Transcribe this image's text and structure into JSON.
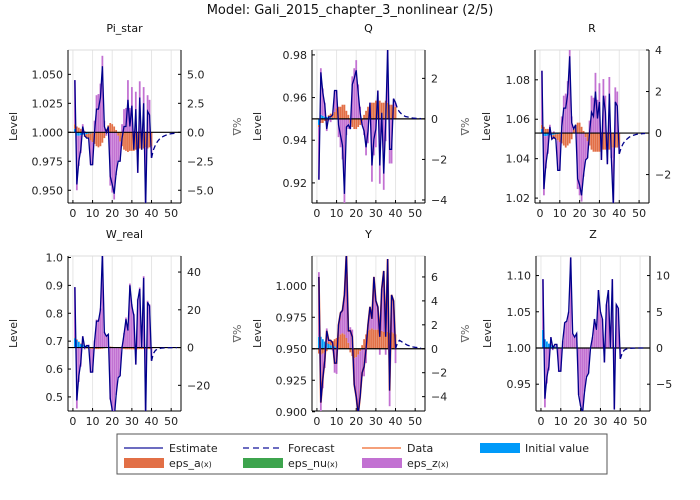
{
  "title": "Model: Gali_2015_chapter_3_nonlinear  (2/5)",
  "colors": {
    "estimate": "#00008b",
    "forecast": "#00008b",
    "data": "#e8501f",
    "initial": "#009af9",
    "eps_a": "#e26f46",
    "eps_nu": "#3da44d",
    "eps_z": "#c271d2"
  },
  "legend": {
    "estimate": "Estimate",
    "forecast": "Forecast",
    "data": "Data",
    "initial": "Initial value",
    "eps_a": "eps_a",
    "eps_nu": "eps_nu",
    "eps_z": "eps_z",
    "shock_suffix": "(x)"
  },
  "chart_data": [
    {
      "type": "line",
      "title": "Pi_star",
      "ylabel": "Level",
      "ylabel_right": "%Δ",
      "xlim": [
        -2.5,
        55
      ],
      "ylim_pct": [
        -6.1,
        7.1
      ],
      "steady_state": 1.0,
      "xticks": [
        "0",
        "10",
        "20",
        "30",
        "40",
        "50"
      ],
      "left_ticks": [
        "0.950",
        "0.975",
        "1.000",
        "1.025",
        "1.050"
      ],
      "right_ticks": [
        {
          "v": -5,
          "l": "−5.0"
        },
        {
          "v": -2.5,
          "l": "−2.5"
        },
        {
          "v": 0,
          "l": "0.0"
        },
        {
          "v": 2.5,
          "l": "2.5"
        },
        {
          "v": 5,
          "l": "5.0"
        }
      ],
      "estimate": [
        4.5,
        -4.5,
        -2.5,
        -1.5,
        0.5,
        -0.3,
        -0.5,
        -0.5,
        -2.8,
        -2.8,
        0,
        2.0,
        2.0,
        3.0,
        5.7,
        0.5,
        0,
        0.5,
        -3.8,
        -4.5,
        -5.3,
        -3.5,
        -2.5,
        -2.5,
        -0.5,
        0.5,
        0.5,
        2.8,
        0.5,
        2.3,
        -1.5,
        2.0,
        -3.5,
        3.0,
        -1.5,
        2.5,
        -6.5,
        1.8,
        1.5,
        -2.2
      ],
      "forecast": [
        -1.5,
        -1.1,
        -0.8,
        -0.6,
        -0.45,
        -0.35,
        -0.27,
        -0.2,
        -0.15,
        -0.12,
        -0.1,
        -0.08,
        -0.06
      ],
      "initial": [
        0.3,
        -0.3,
        -0.3,
        -0.25,
        -0.2,
        -0.2,
        -0.15,
        -0.1,
        -0.1,
        -0.05
      ],
      "eps_a": [
        0.4,
        0.5,
        0.4,
        0.3,
        0.2,
        -0.2,
        -0.3,
        -0.4,
        -0.6,
        -0.8,
        -1.0,
        -1.2,
        -1.3,
        -1.2,
        -0.9,
        -0.5,
        0.3,
        0.6,
        0.8,
        0.7,
        0.5,
        0.2,
        -0.3,
        -0.8,
        -1.2,
        -1.5,
        -1.6,
        -1.7,
        -1.6,
        -1.6,
        -1.6,
        -1.5,
        -1.5,
        -1.4,
        -1.5,
        -1.4,
        -1.3,
        -1.4,
        -1.3,
        -1.2
      ]
    },
    {
      "type": "line",
      "title": "Q",
      "ylabel": "Level",
      "ylabel_right": "%Δ",
      "xlim": [
        -2.5,
        55
      ],
      "ylim_pct": [
        -4.15,
        3.4
      ],
      "steady_state": 0.95,
      "xticks": [
        "0",
        "10",
        "20",
        "30",
        "40",
        "50"
      ],
      "left_ticks": [
        "0.92",
        "0.94",
        "0.96",
        "0.98"
      ],
      "right_ticks": [
        {
          "v": -4,
          "l": "−4"
        },
        {
          "v": -2,
          "l": "−2"
        },
        {
          "v": 0,
          "l": "0"
        },
        {
          "v": 2,
          "l": "2"
        }
      ],
      "estimate": [
        -3.0,
        2.3,
        1.3,
        0.7,
        -0.5,
        0.1,
        0.1,
        0.2,
        1.4,
        1.4,
        -0.3,
        -0.8,
        -1.3,
        -3.7,
        -0.4,
        -0.3,
        -0.5,
        1.7,
        2.0,
        2.4,
        1.3,
        0.3,
        -0.3,
        -0.6,
        -1.4,
        -0.6,
        0.8,
        -2.3,
        -1.0,
        -0.5,
        1.4,
        -2.3,
        0.3,
        -2.7,
        -0.2,
        3.5,
        -1.5,
        -1.5,
        1.0,
        0.8
      ],
      "forecast": [
        0.5,
        0.35,
        0.25,
        0.18,
        0.12,
        0.1,
        0.07,
        0.05,
        0.04,
        0.03,
        0.02,
        0.02,
        0.01
      ],
      "initial": [
        -0.3,
        0.2,
        0.15,
        0.1,
        0.1,
        0.08,
        0.06,
        0.05,
        0.04,
        0.03
      ],
      "eps_a": [
        -0.1,
        -0.2,
        -0.2,
        -0.1,
        -0.1,
        0.1,
        0.2,
        0.2,
        0.3,
        0.5,
        0.6,
        0.6,
        0.7,
        0.7,
        0.4,
        0.2,
        -0.2,
        -0.4,
        -0.5,
        -0.5,
        -0.4,
        -0.3,
        -0.1,
        0.2,
        0.4,
        0.6,
        0.7,
        0.8,
        0.8,
        0.9,
        0.9,
        0.9,
        0.8,
        0.8,
        0.9,
        0.8,
        0.7,
        0.7,
        0.6,
        0.6
      ]
    },
    {
      "type": "line",
      "title": "R",
      "ylabel": "Level",
      "ylabel_right": "%Δ",
      "xlim": [
        -2.5,
        55
      ],
      "ylim_pct": [
        -3.37,
        4.0
      ],
      "steady_state": 1.053,
      "xticks": [
        "0",
        "10",
        "20",
        "30",
        "40",
        "50"
      ],
      "left_ticks": [
        "1.02",
        "1.04",
        "1.06",
        "1.08"
      ],
      "right_ticks": [
        {
          "v": -2,
          "l": "−2"
        },
        {
          "v": 0,
          "l": "0"
        },
        {
          "v": 2,
          "l": "2"
        },
        {
          "v": 4,
          "l": "4"
        }
      ],
      "estimate": [
        3.0,
        -2.7,
        -1.5,
        -0.8,
        0.3,
        -0.3,
        -0.2,
        -0.3,
        -1.8,
        -1.8,
        0.3,
        1.2,
        1.2,
        1.9,
        3.7,
        0.5,
        0.2,
        0.4,
        -2.2,
        -2.5,
        -3.0,
        -2.0,
        -1.3,
        -1.2,
        0,
        1.0,
        0.8,
        2.0,
        0.7,
        1.5,
        -1.3,
        1.8,
        1.0,
        -1.5,
        1.9,
        -1.2,
        -3.5,
        1.5,
        1.3,
        -1.0
      ],
      "forecast": [
        -0.7,
        -0.5,
        -0.38,
        -0.28,
        -0.2,
        -0.15,
        -0.11,
        -0.08,
        -0.06,
        -0.05,
        -0.04,
        -0.03,
        -0.02
      ],
      "initial": [
        0.2,
        -0.15,
        -0.15,
        -0.12,
        -0.1,
        -0.1,
        -0.08,
        -0.06,
        -0.05,
        -0.03
      ],
      "eps_a": [
        0.2,
        0.3,
        0.2,
        0.2,
        0.1,
        -0.1,
        -0.2,
        -0.2,
        -0.3,
        -0.4,
        -0.5,
        -0.6,
        -0.7,
        -0.6,
        -0.5,
        -0.3,
        0.2,
        0.4,
        0.5,
        0.5,
        0.3,
        0.1,
        -0.2,
        -0.4,
        -0.6,
        -0.8,
        -0.9,
        -0.9,
        -0.9,
        -0.9,
        -0.8,
        -0.8,
        -0.8,
        -0.7,
        -0.8,
        -0.7,
        -0.7,
        -0.7,
        -0.7,
        -0.6
      ]
    },
    {
      "type": "line",
      "title": "W_real",
      "ylabel": "Level",
      "ylabel_right": "%Δ",
      "xlim": [
        -2.5,
        55
      ],
      "ylim_pct": [
        -33.6,
        48.5
      ],
      "steady_state": 0.677,
      "xticks": [
        "0",
        "10",
        "20",
        "30",
        "40",
        "50"
      ],
      "left_ticks": [
        "0.5",
        "0.6",
        "0.7",
        "0.8",
        "0.9",
        "1.0"
      ],
      "right_ticks": [
        {
          "v": -20,
          "l": "−20"
        },
        {
          "v": 0,
          "l": "0"
        },
        {
          "v": 20,
          "l": "20"
        },
        {
          "v": 40,
          "l": "40"
        }
      ],
      "estimate": [
        32,
        -28,
        -15,
        -8,
        6,
        0,
        1,
        1,
        -13,
        -13,
        3,
        14,
        14,
        20,
        50,
        8,
        6,
        7,
        -27,
        -33,
        -38,
        -25,
        -16,
        -15,
        0,
        7,
        15,
        9,
        33,
        22,
        17,
        -9,
        25,
        31,
        0,
        37,
        -37,
        24,
        22,
        -7
      ],
      "forecast": [
        -3,
        -1.5,
        -0.8,
        -0.5,
        -0.3,
        -0.2,
        -0.15,
        -0.1,
        -0.08,
        -0.06,
        -0.04,
        -0.03,
        -0.02
      ],
      "initial": [
        5,
        4,
        3,
        2,
        1.5,
        1,
        0.7,
        0.5,
        0.3,
        0.2
      ],
      "eps_a": [
        0.3,
        0.3,
        0.2,
        0.1,
        0,
        -0.3,
        -0.5,
        -0.6,
        -0.7,
        -0.8,
        -0.8,
        -0.8,
        -0.8,
        -0.7,
        -0.6,
        -0.4,
        0.2,
        0.4,
        0.5,
        0.4,
        0.3,
        0.1,
        -0.2,
        -0.5,
        -0.7,
        -0.8,
        -0.9,
        -0.9,
        -0.9,
        -0.9,
        -0.9,
        -0.9,
        -0.9,
        -0.8,
        -0.8,
        -0.8,
        -0.8,
        -0.8,
        -0.8,
        -0.7
      ]
    },
    {
      "type": "line",
      "title": "Y",
      "ylabel": "Level",
      "ylabel_right": "%Δ",
      "xlim": [
        -2.5,
        55
      ],
      "ylim_pct": [
        -5.2,
        7.75
      ],
      "steady_state": 0.95,
      "xticks": [
        "0",
        "10",
        "20",
        "30",
        "40",
        "50"
      ],
      "left_ticks": [
        "0.900",
        "0.925",
        "0.950",
        "0.975",
        "1.000"
      ],
      "right_ticks": [
        {
          "v": -4,
          "l": "−4"
        },
        {
          "v": -2,
          "l": "−2"
        },
        {
          "v": 0,
          "l": "0"
        },
        {
          "v": 2,
          "l": "2"
        },
        {
          "v": 4,
          "l": "4"
        },
        {
          "v": 6,
          "l": "6"
        }
      ],
      "estimate": [
        6,
        -4.5,
        -2.5,
        -1,
        1.5,
        0.7,
        0.7,
        0.5,
        -1.2,
        -1.2,
        2,
        3,
        3.2,
        4.5,
        8,
        1.5,
        1.5,
        1.0,
        -3,
        -4,
        -5.5,
        -4,
        -2,
        -1.5,
        0,
        2,
        3.5,
        2.5,
        6,
        4,
        3.5,
        1,
        5,
        6.5,
        1,
        7.5,
        -3.5,
        4.5,
        4,
        0
      ],
      "data": [
        6,
        -4.5,
        -2.5,
        -1,
        1.5,
        0.7,
        0.7,
        0.5,
        -1.2,
        -1.2,
        2,
        3,
        3.2,
        4.5,
        8,
        1.5,
        1.5,
        1.0,
        -3,
        -4,
        -5.5,
        -4,
        -2,
        -1.5,
        0,
        2,
        3.5,
        2.5,
        6,
        4,
        3.5,
        1,
        5,
        6.5,
        1,
        7.5,
        -3.5,
        4.5,
        4,
        0
      ],
      "forecast": [
        0.5,
        0.7,
        0.6,
        0.5,
        0.4,
        0.3,
        0.25,
        0.2,
        0.15,
        0.12,
        0.1,
        0.08,
        0.06
      ],
      "initial": [
        1.0,
        1.0,
        0.8,
        0.6,
        0.5,
        0.4,
        0.3,
        0.25,
        0.2,
        0.1
      ],
      "eps_a": [
        -0.4,
        -0.5,
        -0.4,
        -0.3,
        -0.2,
        0.2,
        0.3,
        0.4,
        0.6,
        0.8,
        1.0,
        1.2,
        1.3,
        1.2,
        0.9,
        0.5,
        -0.3,
        -0.6,
        -0.8,
        -0.7,
        -0.5,
        -0.2,
        0.3,
        0.8,
        1.2,
        1.5,
        1.6,
        1.7,
        1.6,
        1.6,
        1.6,
        1.5,
        1.5,
        1.4,
        1.5,
        1.4,
        1.3,
        1.4,
        1.3,
        1.2
      ]
    },
    {
      "type": "line",
      "title": "Z",
      "ylabel": "Level",
      "ylabel_right": "%Δ",
      "xlim": [
        -2.5,
        55
      ],
      "ylim_pct": [
        -8.7,
        12.7
      ],
      "steady_state": 1.0,
      "xticks": [
        "0",
        "10",
        "20",
        "30",
        "40",
        "50"
      ],
      "left_ticks": [
        "0.95",
        "1.00",
        "1.05",
        "1.10"
      ],
      "right_ticks": [
        {
          "v": -5,
          "l": "−5"
        },
        {
          "v": 0,
          "l": "0"
        },
        {
          "v": 5,
          "l": "5"
        },
        {
          "v": 10,
          "l": "10"
        }
      ],
      "estimate": [
        9.5,
        -7,
        -4,
        -2.5,
        1.5,
        0,
        0.5,
        0.5,
        -3.2,
        -3.2,
        1,
        3.5,
        3.7,
        5,
        12.5,
        2,
        1.5,
        2,
        -6.5,
        -8,
        -9,
        -6,
        -4,
        -3.5,
        0,
        1.5,
        4,
        2.5,
        8,
        5,
        4,
        -2,
        6,
        8,
        0,
        9.5,
        -8.5,
        6,
        5.5,
        -1.5
      ],
      "forecast": [
        -0.7,
        -0.3,
        -0.15,
        -0.1,
        -0.05,
        -0.03,
        -0.02,
        -0.01,
        0,
        0,
        0,
        0,
        0
      ],
      "initial": [
        2.5,
        1.2,
        0.9,
        0.6,
        0.4,
        0.3,
        0.2,
        0.15,
        0.1,
        0.05
      ],
      "eps_a": []
    }
  ]
}
